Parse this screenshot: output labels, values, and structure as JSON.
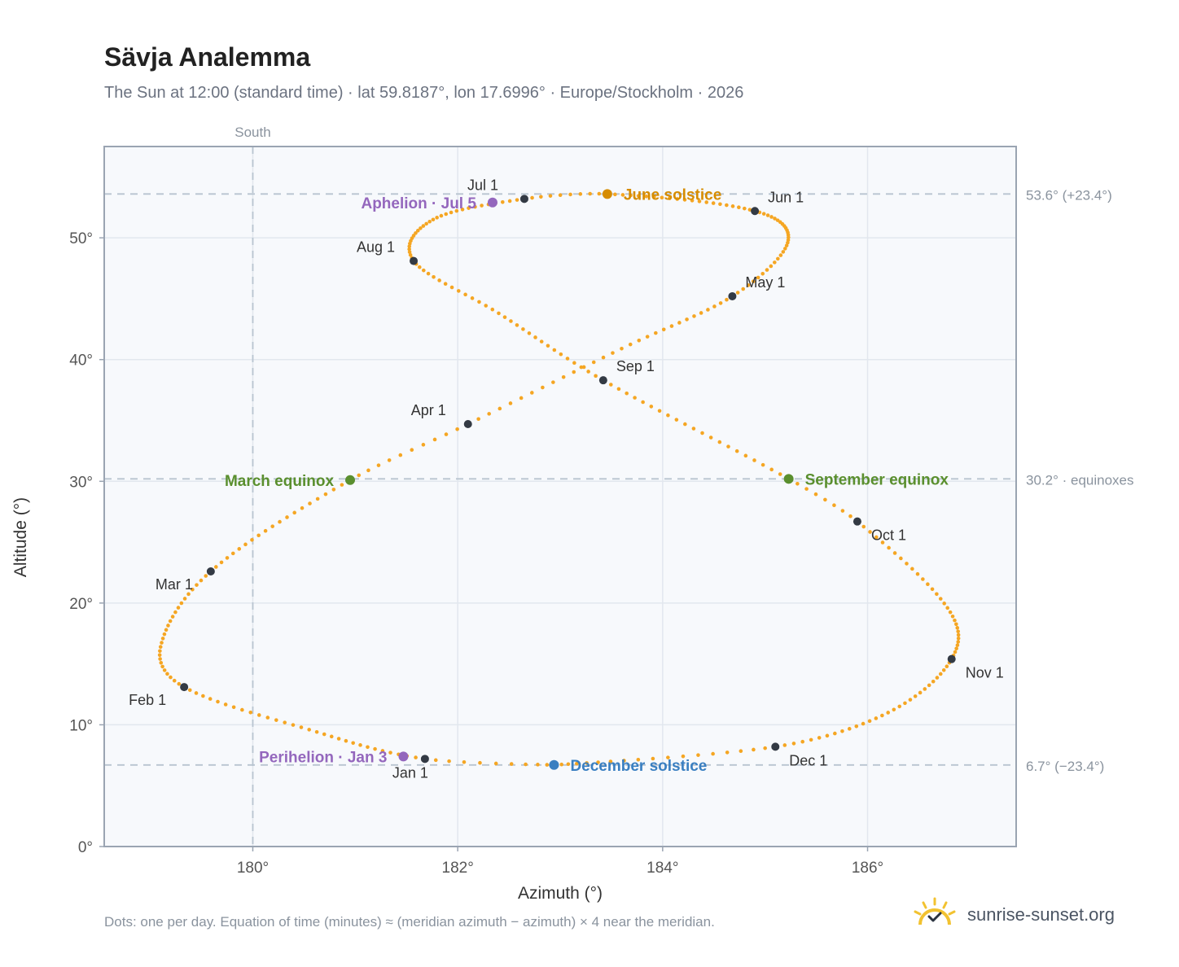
{
  "header": {
    "title": "Sävja Analemma",
    "subtitle": "The Sun at 12:00 (standard time) · lat 59.8187°, lon 17.6996° · Europe/Stockholm · 2026"
  },
  "footer": {
    "note": "Dots: one per day. Equation of time (minutes) ≈ (meridian azimuth − azimuth) × 4 near the meridian.",
    "brand": "sunrise-sunset.org",
    "brand_icon": "sun-logo-icon"
  },
  "colors": {
    "path": "#f5a623",
    "month_marker": "#333a44",
    "equinox": "#5a8f2e",
    "june_solstice": "#d68c00",
    "december_solstice": "#3a7fc1",
    "perihelion_aphelion": "#9467bd",
    "plot_bg": "#f7f9fc",
    "grid": "#e2e7ee",
    "frame": "#9aa4b2"
  },
  "chart_data": {
    "type": "scatter",
    "xlabel": "Azimuth (°)",
    "ylabel": "Altitude (°)",
    "xlim": [
      178.55,
      187.45
    ],
    "ylim": [
      0,
      57.5
    ],
    "xticks": [
      180,
      182,
      184,
      186
    ],
    "xtick_labels": [
      "180°",
      "182°",
      "184°",
      "186°"
    ],
    "yticks": [
      0,
      10,
      20,
      30,
      40,
      50
    ],
    "ytick_labels": [
      "0°",
      "10°",
      "20°",
      "30°",
      "40°",
      "50°"
    ],
    "grid": true,
    "south_line": {
      "x": 180,
      "label": "South"
    },
    "reference_lines": [
      {
        "y": 53.6,
        "label": "53.6° (+23.4°)"
      },
      {
        "y": 30.2,
        "label": "30.2° · equinoxes"
      },
      {
        "y": 6.7,
        "label": "6.7° (−23.4°)"
      }
    ],
    "month_markers": [
      {
        "label": "Jan 1",
        "az": 181.68,
        "alt": 7.2,
        "anchor": "below"
      },
      {
        "label": "Feb 1",
        "az": 179.33,
        "alt": 13.1,
        "anchor": "below-left"
      },
      {
        "label": "Mar 1",
        "az": 179.59,
        "alt": 22.6,
        "anchor": "below-left"
      },
      {
        "label": "Apr 1",
        "az": 182.1,
        "alt": 34.7,
        "anchor": "above-left"
      },
      {
        "label": "May 1",
        "az": 184.68,
        "alt": 45.2,
        "anchor": "above-right"
      },
      {
        "label": "Jun 1",
        "az": 184.9,
        "alt": 52.2,
        "anchor": "above-right"
      },
      {
        "label": "Jul 1",
        "az": 182.65,
        "alt": 53.2,
        "anchor": "above-left"
      },
      {
        "label": "Aug 1",
        "az": 181.57,
        "alt": 48.1,
        "anchor": "above-left"
      },
      {
        "label": "Sep 1",
        "az": 183.42,
        "alt": 38.3,
        "anchor": "above-right"
      },
      {
        "label": "Oct 1",
        "az": 185.9,
        "alt": 26.7,
        "anchor": "below-right"
      },
      {
        "label": "Nov 1",
        "az": 186.82,
        "alt": 15.4,
        "anchor": "below-right"
      },
      {
        "label": "Dec 1",
        "az": 185.1,
        "alt": 8.2,
        "anchor": "below-right"
      }
    ],
    "events": [
      {
        "label": "March equinox",
        "az": 180.95,
        "alt": 30.1,
        "color_key": "equinox",
        "side": "left"
      },
      {
        "label": "September equinox",
        "az": 185.23,
        "alt": 30.2,
        "color_key": "equinox",
        "side": "right"
      },
      {
        "label": "June solstice",
        "az": 183.46,
        "alt": 53.6,
        "color_key": "june_solstice",
        "side": "right"
      },
      {
        "label": "December solstice",
        "az": 182.94,
        "alt": 6.7,
        "color_key": "december_solstice",
        "side": "right"
      },
      {
        "label": "Perihelion · Jan 3",
        "az": 181.47,
        "alt": 7.4,
        "color_key": "perihelion_aphelion",
        "side": "left"
      },
      {
        "label": "Aphelion · Jul 5",
        "az": 182.34,
        "alt": 52.9,
        "color_key": "perihelion_aphelion",
        "side": "left"
      }
    ],
    "daily_path_keypoints": [
      {
        "day": 0,
        "az": 181.68,
        "alt": 7.2
      },
      {
        "day": 15,
        "az": 180.55,
        "alt": 9.6
      },
      {
        "day": 31,
        "az": 179.33,
        "alt": 13.1
      },
      {
        "day": 42,
        "az": 179.1,
        "alt": 16.4
      },
      {
        "day": 59,
        "az": 179.59,
        "alt": 22.6
      },
      {
        "day": 79,
        "az": 180.95,
        "alt": 30.1
      },
      {
        "day": 90,
        "az": 182.1,
        "alt": 34.7
      },
      {
        "day": 105,
        "az": 183.6,
        "alt": 40.9
      },
      {
        "day": 120,
        "az": 184.68,
        "alt": 45.2
      },
      {
        "day": 135,
        "az": 185.22,
        "alt": 49.6
      },
      {
        "day": 151,
        "az": 184.9,
        "alt": 52.2
      },
      {
        "day": 172,
        "az": 183.46,
        "alt": 53.6
      },
      {
        "day": 181,
        "az": 182.65,
        "alt": 53.2
      },
      {
        "day": 196,
        "az": 181.76,
        "alt": 51.5
      },
      {
        "day": 212,
        "az": 181.57,
        "alt": 48.1
      },
      {
        "day": 227,
        "az": 182.4,
        "alt": 43.8
      },
      {
        "day": 243,
        "az": 183.42,
        "alt": 38.3
      },
      {
        "day": 265,
        "az": 185.23,
        "alt": 30.2
      },
      {
        "day": 273,
        "az": 185.9,
        "alt": 26.7
      },
      {
        "day": 290,
        "az": 186.78,
        "alt": 19.6
      },
      {
        "day": 304,
        "az": 186.82,
        "alt": 15.4
      },
      {
        "day": 319,
        "az": 186.2,
        "alt": 11.0
      },
      {
        "day": 334,
        "az": 185.1,
        "alt": 8.2
      },
      {
        "day": 354,
        "az": 182.94,
        "alt": 6.7
      },
      {
        "day": 365,
        "az": 181.68,
        "alt": 7.2
      }
    ]
  }
}
